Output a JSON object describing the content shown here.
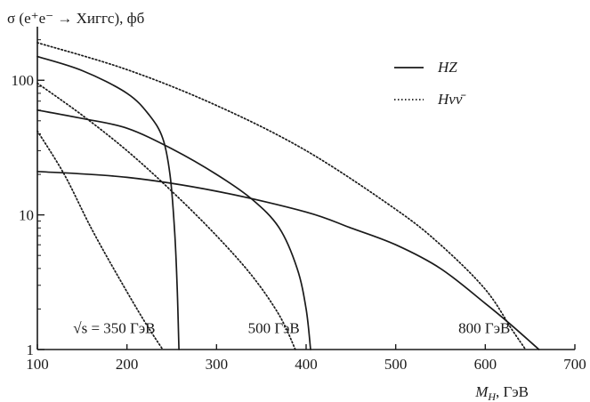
{
  "chart_data": {
    "type": "line",
    "ylabel": "σ (e⁺e⁻ → Хиггс), фб",
    "xlabel": "M_H, ГэВ",
    "xlabel_main": "M",
    "xlabel_sub": "H",
    "xlabel_unit": ", ГэВ",
    "xlim": [
      100,
      700
    ],
    "ylim": [
      1,
      250
    ],
    "y_scale": "log",
    "x_ticks": [
      100,
      200,
      300,
      400,
      500,
      600,
      700
    ],
    "y_ticks": [
      {
        "value": 1,
        "label": "1"
      },
      {
        "value": 10,
        "label": "10"
      },
      {
        "value": 100,
        "label": "100"
      }
    ],
    "grid": false,
    "legend_position": "top-right",
    "legend": [
      {
        "label": "HZ",
        "style": "solid"
      },
      {
        "label": "Hνν̄",
        "style": "dotted"
      }
    ],
    "annotations": [
      {
        "text": "√s = 350 ГэВ",
        "x": 140,
        "y": 1.45
      },
      {
        "text": "500 ГэВ",
        "x": 335,
        "y": 1.45
      },
      {
        "text": "800 ГэВ",
        "x": 570,
        "y": 1.45
      }
    ],
    "series": [
      {
        "group": "350 GeV",
        "process": "HZ",
        "style": "solid",
        "points": [
          [
            100,
            150
          ],
          [
            150,
            118
          ],
          [
            200,
            80
          ],
          [
            225,
            55
          ],
          [
            240,
            37
          ],
          [
            248,
            20
          ],
          [
            253,
            8
          ],
          [
            256,
            3
          ],
          [
            258,
            1
          ]
        ]
      },
      {
        "group": "350 GeV",
        "process": "Hνν̄",
        "style": "dotted",
        "points": [
          [
            100,
            42
          ],
          [
            130,
            20
          ],
          [
            160,
            8
          ],
          [
            190,
            3.5
          ],
          [
            220,
            1.6
          ],
          [
            240,
            1
          ]
        ]
      },
      {
        "group": "500 GeV",
        "process": "HZ",
        "style": "solid",
        "points": [
          [
            100,
            60
          ],
          [
            150,
            52
          ],
          [
            200,
            44
          ],
          [
            250,
            31
          ],
          [
            300,
            20
          ],
          [
            340,
            13
          ],
          [
            370,
            8
          ],
          [
            390,
            4
          ],
          [
            400,
            2
          ],
          [
            405,
            1
          ]
        ]
      },
      {
        "group": "500 GeV",
        "process": "Hνν̄",
        "style": "dotted",
        "points": [
          [
            100,
            95
          ],
          [
            150,
            55
          ],
          [
            200,
            30
          ],
          [
            250,
            15
          ],
          [
            300,
            7
          ],
          [
            340,
            3.5
          ],
          [
            370,
            1.8
          ],
          [
            388,
            1
          ]
        ]
      },
      {
        "group": "800 GeV",
        "process": "HZ",
        "style": "solid",
        "points": [
          [
            100,
            21
          ],
          [
            200,
            19
          ],
          [
            300,
            15
          ],
          [
            400,
            10.5
          ],
          [
            450,
            8
          ],
          [
            500,
            6
          ],
          [
            550,
            4
          ],
          [
            600,
            2.2
          ],
          [
            630,
            1.5
          ],
          [
            660,
            1
          ]
        ]
      },
      {
        "group": "800 GeV",
        "process": "Hνν̄",
        "style": "dotted",
        "points": [
          [
            100,
            190
          ],
          [
            200,
            120
          ],
          [
            300,
            65
          ],
          [
            400,
            30
          ],
          [
            500,
            11
          ],
          [
            550,
            6
          ],
          [
            600,
            2.8
          ],
          [
            630,
            1.4
          ],
          [
            645,
            1
          ]
        ]
      }
    ]
  }
}
